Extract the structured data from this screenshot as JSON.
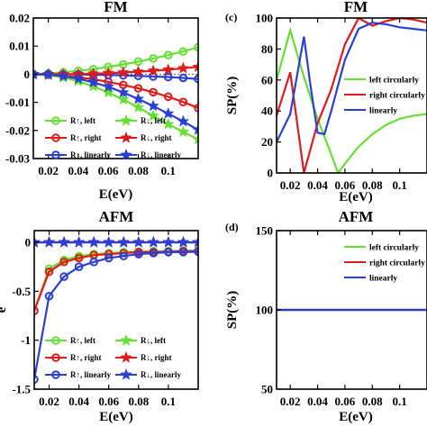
{
  "colors": {
    "green": "#66e033",
    "red": "#e01a1a",
    "blue": "#2a3fd6",
    "black": "#000000"
  },
  "chart_data": [
    {
      "type": "line",
      "panel_label": "",
      "title": "FM",
      "xlabel": "E(eV)",
      "ylabel": "",
      "xlim": [
        0.01,
        0.12
      ],
      "ylim": [
        -0.03,
        0.02
      ],
      "xticks": [
        "0.02",
        "0.04",
        "0.06",
        "0.08",
        "0.1"
      ],
      "yticks": [
        "0.02",
        "0.01",
        "0",
        "-0.01",
        "-0.02",
        "-0.03"
      ],
      "ytick_values": [
        0.02,
        0.01,
        0,
        -0.01,
        -0.02,
        -0.03
      ],
      "xtick_values": [
        0.02,
        0.04,
        0.06,
        0.08,
        0.1
      ],
      "legend_placement": "bottom",
      "series": [
        {
          "name": "R↑, left",
          "marker": "circle",
          "color": "green",
          "x": [
            0.01,
            0.02,
            0.03,
            0.04,
            0.05,
            0.06,
            0.07,
            0.08,
            0.09,
            0.1,
            0.11,
            0.12
          ],
          "y": [
            0.0,
            0.0003,
            0.0007,
            0.0012,
            0.0018,
            0.0026,
            0.0035,
            0.0045,
            0.0056,
            0.0068,
            0.0081,
            0.0096
          ]
        },
        {
          "name": "R↑, right",
          "marker": "circle",
          "color": "red",
          "x": [
            0.01,
            0.02,
            0.03,
            0.04,
            0.05,
            0.06,
            0.07,
            0.08,
            0.09,
            0.1,
            0.11,
            0.12
          ],
          "y": [
            0.0,
            -0.0002,
            -0.0006,
            -0.0011,
            -0.0018,
            -0.0027,
            -0.0038,
            -0.005,
            -0.0064,
            -0.008,
            -0.0099,
            -0.012
          ]
        },
        {
          "name": "R↑, linearly",
          "marker": "circle",
          "color": "blue",
          "x": [
            0.01,
            0.02,
            0.03,
            0.04,
            0.05,
            0.06,
            0.07,
            0.08,
            0.09,
            0.1,
            0.11,
            0.12
          ],
          "y": [
            0.0,
            0.0,
            -0.0001,
            -0.0001,
            -0.0002,
            -0.0003,
            -0.0004,
            -0.0006,
            -0.0008,
            -0.001,
            -0.0013,
            -0.0017
          ]
        },
        {
          "name": "R↓, left",
          "marker": "star",
          "color": "green",
          "x": [
            0.01,
            0.02,
            0.03,
            0.04,
            0.05,
            0.06,
            0.07,
            0.08,
            0.09,
            0.1,
            0.11,
            0.12
          ],
          "y": [
            0.0,
            -0.0003,
            -0.0012,
            -0.0025,
            -0.0043,
            -0.0065,
            -0.009,
            -0.0118,
            -0.0148,
            -0.0178,
            -0.0205,
            -0.0232
          ]
        },
        {
          "name": "R↓, right",
          "marker": "star",
          "color": "red",
          "x": [
            0.01,
            0.02,
            0.03,
            0.04,
            0.05,
            0.06,
            0.07,
            0.08,
            0.09,
            0.1,
            0.11,
            0.12
          ],
          "y": [
            0.0,
            0.0,
            0.0,
            0.0,
            0.0002,
            0.0004,
            0.0006,
            0.0009,
            0.0012,
            0.0016,
            0.0021,
            0.0026
          ]
        },
        {
          "name": "R↓, linearly",
          "marker": "star",
          "color": "blue",
          "x": [
            0.01,
            0.02,
            0.03,
            0.04,
            0.05,
            0.06,
            0.07,
            0.08,
            0.09,
            0.1,
            0.11,
            0.12
          ],
          "y": [
            0.0,
            -0.0002,
            -0.0007,
            -0.0016,
            -0.0029,
            -0.0045,
            -0.0065,
            -0.0088,
            -0.0113,
            -0.014,
            -0.0168,
            -0.0198
          ]
        }
      ]
    },
    {
      "type": "line",
      "panel_label": "(c)",
      "title": "FM",
      "xlabel": "E(eV)",
      "ylabel": "SP(%)",
      "xlim": [
        0.01,
        0.12
      ],
      "ylim": [
        0,
        100
      ],
      "xticks": [
        "0.02",
        "0.04",
        "0.06",
        "0.08",
        "0.1"
      ],
      "xtick_values": [
        0.02,
        0.04,
        0.06,
        0.08,
        0.1
      ],
      "yticks": [
        "0",
        "20",
        "40",
        "60",
        "80",
        "100"
      ],
      "ytick_values": [
        0,
        20,
        40,
        60,
        80,
        100
      ],
      "legend_placement": "right",
      "series": [
        {
          "name": "left circularly",
          "color": "green",
          "x": [
            0.01,
            0.02,
            0.03,
            0.04,
            0.05,
            0.055,
            0.06,
            0.07,
            0.08,
            0.09,
            0.1,
            0.11,
            0.12
          ],
          "y": [
            60,
            92,
            62,
            35,
            12,
            0,
            6,
            17,
            25,
            31,
            35,
            37,
            38
          ]
        },
        {
          "name": "right circularly",
          "color": "red",
          "x": [
            0.01,
            0.02,
            0.03,
            0.04,
            0.05,
            0.06,
            0.07,
            0.08,
            0.09,
            0.1,
            0.11,
            0.12
          ],
          "y": [
            37,
            65,
            0,
            32,
            54,
            83,
            100,
            95,
            98,
            100,
            99,
            97
          ]
        },
        {
          "name": "linearly",
          "color": "blue",
          "x": [
            0.01,
            0.02,
            0.03,
            0.035,
            0.04,
            0.045,
            0.05,
            0.06,
            0.07,
            0.08,
            0.09,
            0.1,
            0.11,
            0.12
          ],
          "y": [
            20,
            38,
            88,
            55,
            26,
            25,
            40,
            73,
            93,
            97,
            96,
            94,
            93,
            92
          ]
        }
      ]
    },
    {
      "type": "line",
      "panel_label": "",
      "title": "AFM",
      "xlabel": "E(eV)",
      "ylabel": "e",
      "xlim": [
        0.01,
        0.12
      ],
      "ylim": [
        -1.5,
        0.12
      ],
      "xticks": [
        "0.02",
        "0.04",
        "0.06",
        "0.08",
        "0.1"
      ],
      "xtick_values": [
        0.02,
        0.04,
        0.06,
        0.08,
        0.1
      ],
      "yticks": [
        "0",
        "-0.5",
        "-1",
        "-1.5"
      ],
      "ytick_values": [
        0,
        -0.5,
        -1,
        -1.5
      ],
      "legend_placement": "bottom",
      "series": [
        {
          "name": "R↑, left",
          "marker": "circle",
          "color": "green",
          "x": [
            0.01,
            0.02,
            0.03,
            0.04,
            0.05,
            0.06,
            0.07,
            0.08,
            0.09,
            0.1,
            0.11,
            0.12
          ],
          "y": [
            -0.7,
            -0.27,
            -0.18,
            -0.14,
            -0.12,
            -0.11,
            -0.1,
            -0.095,
            -0.09,
            -0.09,
            -0.085,
            -0.085
          ]
        },
        {
          "name": "R↑, right",
          "marker": "circle",
          "color": "red",
          "x": [
            0.01,
            0.02,
            0.03,
            0.04,
            0.05,
            0.06,
            0.07,
            0.08,
            0.09,
            0.1,
            0.11,
            0.12
          ],
          "y": [
            -0.7,
            -0.3,
            -0.2,
            -0.16,
            -0.13,
            -0.12,
            -0.11,
            -0.1,
            -0.1,
            -0.095,
            -0.09,
            -0.09
          ]
        },
        {
          "name": "R↑, linearly",
          "marker": "circle",
          "color": "blue",
          "x": [
            0.01,
            0.02,
            0.03,
            0.04,
            0.05,
            0.06,
            0.07,
            0.08,
            0.09,
            0.1,
            0.11,
            0.12
          ],
          "y": [
            -1.4,
            -0.55,
            -0.35,
            -0.25,
            -0.2,
            -0.16,
            -0.14,
            -0.12,
            -0.11,
            -0.1,
            -0.1,
            -0.095
          ]
        },
        {
          "name": "R↓, left",
          "marker": "star",
          "color": "green",
          "x": [
            0.01,
            0.02,
            0.03,
            0.04,
            0.05,
            0.06,
            0.07,
            0.08,
            0.09,
            0.1,
            0.11,
            0.12
          ],
          "y": [
            0,
            0,
            0,
            0,
            0,
            0,
            0,
            0,
            0,
            0,
            0,
            0
          ]
        },
        {
          "name": "R↓, right",
          "marker": "star",
          "color": "red",
          "x": [
            0.01,
            0.02,
            0.03,
            0.04,
            0.05,
            0.06,
            0.07,
            0.08,
            0.09,
            0.1,
            0.11,
            0.12
          ],
          "y": [
            0,
            0,
            0,
            0,
            0,
            0,
            0,
            0,
            0,
            0,
            0,
            0
          ]
        },
        {
          "name": "R↓, linearly",
          "marker": "star",
          "color": "blue",
          "x": [
            0.01,
            0.02,
            0.03,
            0.04,
            0.05,
            0.06,
            0.07,
            0.08,
            0.09,
            0.1,
            0.11,
            0.12
          ],
          "y": [
            0,
            0,
            0,
            0,
            0,
            0,
            0,
            0,
            0,
            0,
            0,
            0
          ]
        }
      ]
    },
    {
      "type": "line",
      "panel_label": "(d)",
      "title": "AFM",
      "xlabel": "E(eV)",
      "ylabel": "SP(%)",
      "xlim": [
        0.01,
        0.12
      ],
      "ylim": [
        50,
        150
      ],
      "xticks": [
        "0.02",
        "0.04",
        "0.06",
        "0.08",
        "0.1"
      ],
      "xtick_values": [
        0.02,
        0.04,
        0.06,
        0.08,
        0.1
      ],
      "yticks": [
        "50",
        "100",
        "150"
      ],
      "ytick_values": [
        50,
        100,
        150
      ],
      "legend_placement": "top-right",
      "series": [
        {
          "name": "left circularly",
          "color": "green",
          "x": [
            0.01,
            0.12
          ],
          "y": [
            100,
            100
          ]
        },
        {
          "name": "right circularly",
          "color": "red",
          "x": [
            0.01,
            0.12
          ],
          "y": [
            100,
            100
          ]
        },
        {
          "name": "linearly",
          "color": "blue",
          "x": [
            0.01,
            0.12
          ],
          "y": [
            100,
            100
          ]
        }
      ]
    }
  ]
}
